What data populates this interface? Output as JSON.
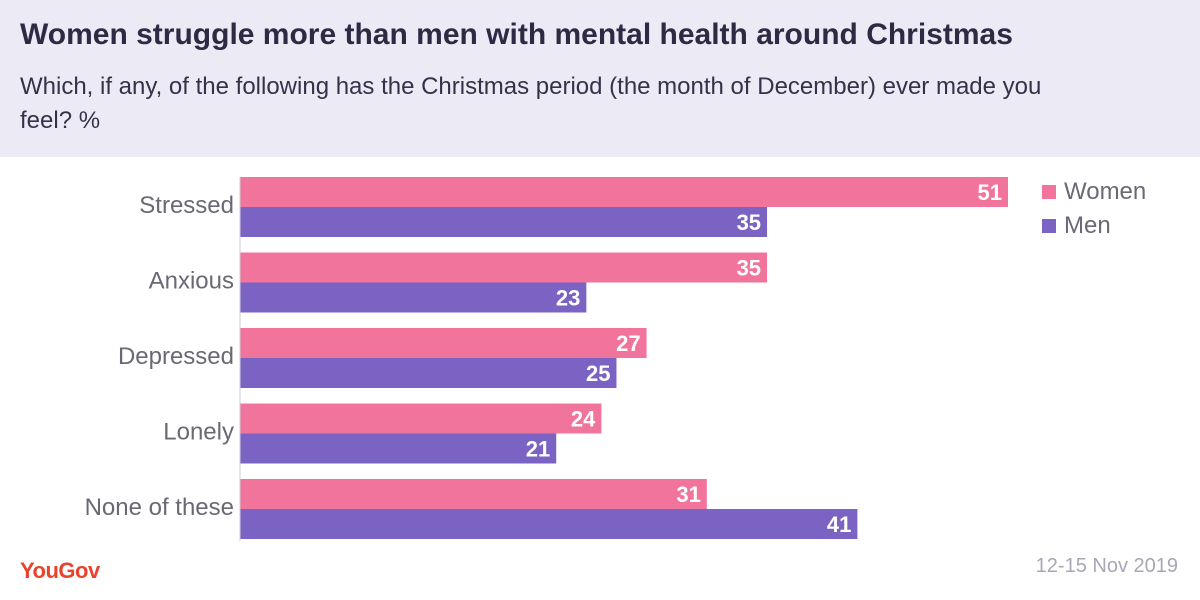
{
  "header": {
    "title": "Women struggle more than men with mental health around Christmas",
    "subtitle": "Which, if any, of the following has the Christmas period (the month of December) ever made you feel? %"
  },
  "footer": {
    "logo": "YouGov",
    "date": "12-15 Nov 2019"
  },
  "colors": {
    "women": "#f1749c",
    "men": "#7b63c4",
    "header_bg": "#ecebf5",
    "logo": "#e8432d"
  },
  "chart_data": {
    "type": "bar",
    "orientation": "horizontal",
    "categories": [
      "Stressed",
      "Anxious",
      "Depressed",
      "Lonely",
      "None of these"
    ],
    "series": [
      {
        "name": "Women",
        "values": [
          51,
          35,
          27,
          24,
          31
        ]
      },
      {
        "name": "Men",
        "values": [
          35,
          23,
          25,
          21,
          41
        ]
      }
    ],
    "xlim": [
      0,
      51
    ],
    "grid": false,
    "legend": "top-right",
    "data_labels": true
  }
}
